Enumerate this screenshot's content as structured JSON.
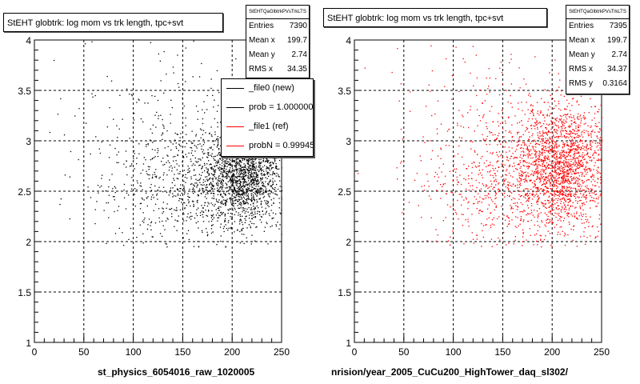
{
  "panels": [
    {
      "title": "StEHT globtrk: log mom vs trk length, tpc+svt",
      "stats": {
        "header": "StEHTQaGlbtrkPVsTrkLTS",
        "rows": [
          {
            "label": "Entries",
            "value": "7390"
          },
          {
            "label": "Mean x",
            "value": "199.7"
          },
          {
            "label": "Mean y",
            "value": "2.74"
          },
          {
            "label": "RMS x",
            "value": "34.35"
          }
        ]
      },
      "xtitle": "st_physics_6054016_raw_1020005",
      "marker_color": "#000000"
    },
    {
      "title": "StEHT globtrk: log mom vs trk length, tpc+svt",
      "stats": {
        "header": "StEHTQaGlbtrkPVsTrkLTS",
        "rows": [
          {
            "label": "Entries",
            "value": "7395"
          },
          {
            "label": "Mean x",
            "value": "199.7"
          },
          {
            "label": "Mean y",
            "value": "2.74"
          },
          {
            "label": "RMS x",
            "value": "34.37"
          },
          {
            "label": "RMS y",
            "value": "0.3164"
          }
        ]
      },
      "xtitle": "nrision/year_2005_CuCu200_HighTower_daq_sl302/",
      "marker_color": "#ff0000"
    }
  ],
  "legend": {
    "entries": [
      {
        "text": "_file0 (new)",
        "color": "#000000"
      },
      {
        "text": "prob = 1.000000",
        "color": "#000000"
      },
      {
        "text": "_file1 (ref)",
        "color": "#ff0000"
      },
      {
        "text": "probN = 0.99945",
        "color": "#ff0000"
      }
    ]
  },
  "chart_data": [
    {
      "type": "scatter",
      "x_ticks": [
        "0",
        "50",
        "100",
        "150",
        "200",
        "250"
      ],
      "y_ticks": [
        "1",
        "1.5",
        "2",
        "2.5",
        "3",
        "3.5",
        "4"
      ],
      "xlim": [
        0,
        250
      ],
      "ylim": [
        1,
        4
      ],
      "grid": true,
      "series": [
        {
          "color": "#000000",
          "entries": 7390,
          "mean_x": 199.7,
          "mean_y": 2.74,
          "rms_x": 34.35,
          "clusters": [
            {
              "cx": 210,
              "cy": 2.68,
              "sx": 22,
              "sy": 0.26,
              "weight": 0.72
            },
            {
              "cx": 150,
              "cy": 2.55,
              "sx": 38,
              "sy": 0.32,
              "weight": 0.22
            },
            {
              "cx": 120,
              "cy": 3.1,
              "sx": 55,
              "sy": 0.5,
              "weight": 0.06
            }
          ]
        }
      ]
    },
    {
      "type": "scatter",
      "x_ticks": [
        "0",
        "50",
        "100",
        "150",
        "200",
        "250"
      ],
      "y_ticks": [
        "1",
        "1.5",
        "2",
        "2.5",
        "3",
        "3.5",
        "4"
      ],
      "xlim": [
        0,
        250
      ],
      "ylim": [
        1,
        4
      ],
      "grid": true,
      "series": [
        {
          "color": "#ff0000",
          "entries": 7395,
          "mean_x": 199.7,
          "mean_y": 2.74,
          "rms_x": 34.37,
          "rms_y": 0.3164,
          "clusters": [
            {
              "cx": 208,
              "cy": 2.75,
              "sx": 24,
              "sy": 0.32,
              "weight": 0.72
            },
            {
              "cx": 150,
              "cy": 2.6,
              "sx": 40,
              "sy": 0.35,
              "weight": 0.22
            },
            {
              "cx": 130,
              "cy": 3.1,
              "sx": 55,
              "sy": 0.5,
              "weight": 0.06
            }
          ]
        }
      ]
    }
  ]
}
